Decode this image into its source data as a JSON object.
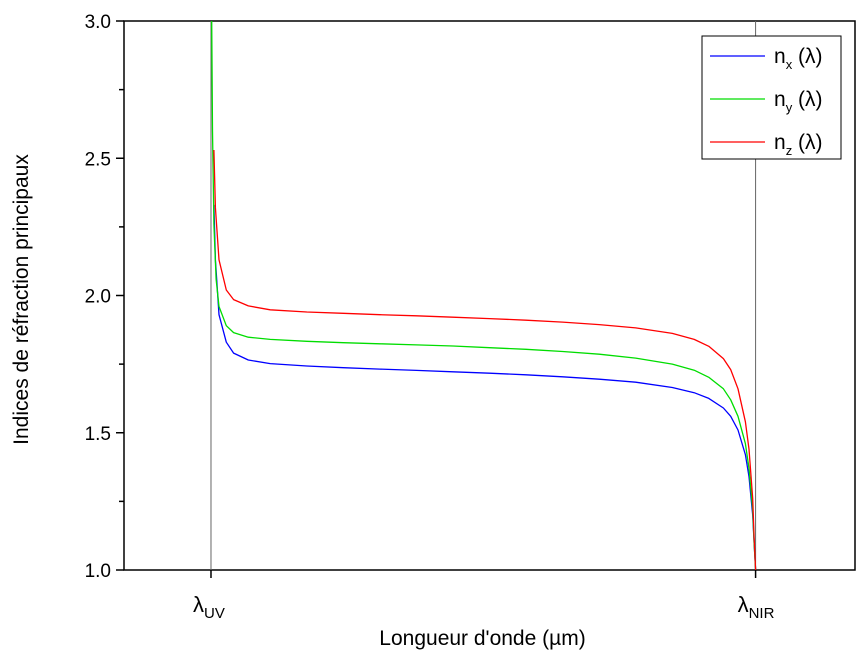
{
  "chart_data": {
    "type": "line",
    "xlabel": "Longueur d'onde (µm)",
    "ylabel": "Indices de réfraction principaux",
    "ylim": [
      1.0,
      3.0
    ],
    "xlim": [
      0,
      100
    ],
    "grid": false,
    "legend_position": "top-right",
    "y_ticks": [
      {
        "value": 1.0,
        "label": "1.0"
      },
      {
        "value": 1.5,
        "label": "1.5"
      },
      {
        "value": 2.0,
        "label": "2.0"
      },
      {
        "value": 2.5,
        "label": "2.5"
      },
      {
        "value": 3.0,
        "label": "3.0"
      }
    ],
    "x_ticks": [
      {
        "value": 11.9,
        "symbol": "λ",
        "subscript": "UV"
      },
      {
        "value": 86.4,
        "symbol": "λ",
        "subscript": "NIR"
      }
    ],
    "vlines": [
      11.9,
      86.4
    ],
    "series": [
      {
        "name": "n_x (λ)",
        "legend_main": "n",
        "legend_sub": "x",
        "legend_suffix": " (λ)",
        "color": "#0000ff",
        "x": [
          12.3,
          12.5,
          13,
          14,
          15,
          17,
          20,
          25,
          30,
          35,
          40,
          45,
          50,
          55,
          60,
          65,
          70,
          75,
          78,
          80,
          82,
          83,
          84,
          85,
          85.5,
          86,
          86.2,
          86.4
        ],
        "y": [
          2.33,
          2.13,
          1.93,
          1.83,
          1.79,
          1.765,
          1.752,
          1.743,
          1.737,
          1.732,
          1.727,
          1.722,
          1.717,
          1.711,
          1.704,
          1.695,
          1.684,
          1.665,
          1.646,
          1.625,
          1.59,
          1.56,
          1.51,
          1.42,
          1.34,
          1.2,
          1.1,
          1.0
        ]
      },
      {
        "name": "n_y (λ)",
        "legend_main": "n",
        "legend_sub": "y",
        "legend_suffix": " (λ)",
        "color": "#00dd00",
        "x": [
          12.0,
          12.1,
          12.3,
          12.6,
          13,
          14,
          15,
          17,
          20,
          25,
          30,
          35,
          40,
          45,
          50,
          55,
          60,
          65,
          70,
          75,
          78,
          80,
          82,
          83,
          84,
          85,
          85.5,
          86,
          86.2,
          86.4
        ],
        "y": [
          3.0,
          2.6,
          2.26,
          2.06,
          1.96,
          1.89,
          1.865,
          1.848,
          1.84,
          1.833,
          1.828,
          1.824,
          1.82,
          1.816,
          1.81,
          1.804,
          1.796,
          1.786,
          1.772,
          1.75,
          1.728,
          1.702,
          1.66,
          1.62,
          1.56,
          1.46,
          1.37,
          1.22,
          1.1,
          1.0
        ]
      },
      {
        "name": "n_z (λ)",
        "legend_main": "n",
        "legend_sub": "z",
        "legend_suffix": " (λ)",
        "color": "#ff0000",
        "x": [
          12.3,
          12.5,
          13,
          14,
          15,
          17,
          20,
          25,
          30,
          35,
          40,
          45,
          50,
          55,
          60,
          65,
          70,
          75,
          78,
          80,
          82,
          83,
          84,
          85,
          85.5,
          86,
          86.2,
          86.4
        ],
        "y": [
          2.53,
          2.32,
          2.13,
          2.02,
          1.985,
          1.962,
          1.948,
          1.94,
          1.935,
          1.93,
          1.926,
          1.921,
          1.916,
          1.91,
          1.903,
          1.894,
          1.882,
          1.862,
          1.84,
          1.815,
          1.77,
          1.73,
          1.66,
          1.54,
          1.44,
          1.26,
          1.12,
          1.0
        ]
      }
    ]
  }
}
